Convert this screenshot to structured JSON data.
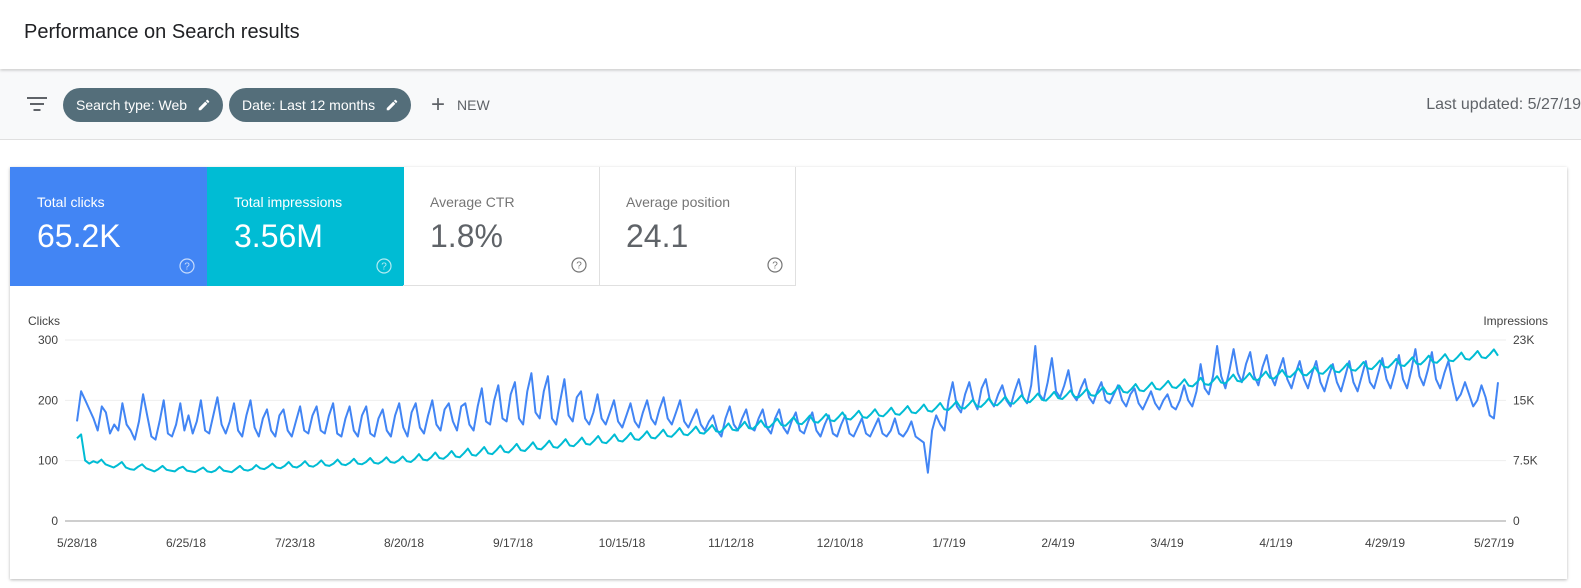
{
  "header": {
    "title": "Performance on Search results"
  },
  "filters": {
    "icon": "filter-list-icon",
    "chips": [
      {
        "label": "Search type: Web",
        "icon": "pencil-icon"
      },
      {
        "label": "Date: Last 12 months",
        "icon": "pencil-icon"
      }
    ],
    "new_label": "NEW",
    "last_updated": "Last updated: 5/27/19"
  },
  "metrics": [
    {
      "label": "Total clicks",
      "value": "65.2K",
      "color": "#4285f4",
      "selected": true
    },
    {
      "label": "Total impressions",
      "value": "3.56M",
      "color": "#00bcd4",
      "selected": true
    },
    {
      "label": "Average CTR",
      "value": "1.8%",
      "selected": false
    },
    {
      "label": "Average position",
      "value": "24.1",
      "selected": false
    }
  ],
  "chart_data": {
    "type": "line",
    "y_left_label": "Clicks",
    "y_right_label": "Impressions",
    "y_left_ticks": [
      "300",
      "200",
      "100",
      "0"
    ],
    "y_right_ticks": [
      "23K",
      "15K",
      "7.5K",
      "0"
    ],
    "ylim_left": [
      0,
      300
    ],
    "ylim_right": [
      0,
      23000
    ],
    "x_ticks": [
      "5/28/18",
      "6/25/18",
      "7/23/18",
      "8/20/18",
      "9/17/18",
      "10/15/18",
      "11/12/18",
      "12/10/18",
      "1/7/19",
      "2/4/19",
      "3/4/19",
      "4/1/19",
      "4/29/19",
      "5/27/19"
    ],
    "grid": true,
    "series": [
      {
        "name": "Clicks",
        "axis": "left",
        "color": "#4285f4",
        "values": [
          165,
          215,
          200,
          185,
          170,
          150,
          190,
          180,
          145,
          160,
          150,
          195,
          160,
          150,
          135,
          165,
          210,
          175,
          140,
          135,
          165,
          200,
          145,
          140,
          160,
          195,
          150,
          175,
          145,
          165,
          200,
          150,
          145,
          175,
          205,
          160,
          145,
          165,
          195,
          150,
          140,
          175,
          200,
          155,
          140,
          170,
          185,
          150,
          140,
          175,
          185,
          150,
          140,
          165,
          190,
          150,
          145,
          175,
          190,
          150,
          145,
          175,
          195,
          145,
          140,
          170,
          190,
          150,
          140,
          175,
          190,
          145,
          140,
          170,
          185,
          150,
          140,
          175,
          195,
          155,
          140,
          180,
          195,
          155,
          145,
          175,
          200,
          160,
          150,
          185,
          195,
          165,
          150,
          190,
          195,
          160,
          150,
          190,
          220,
          165,
          160,
          200,
          225,
          170,
          165,
          210,
          230,
          170,
          160,
          215,
          245,
          180,
          170,
          215,
          240,
          170,
          160,
          200,
          235,
          175,
          165,
          205,
          215,
          170,
          160,
          180,
          210,
          170,
          160,
          180,
          200,
          165,
          155,
          175,
          195,
          165,
          155,
          180,
          200,
          170,
          160,
          185,
          205,
          170,
          160,
          180,
          200,
          165,
          155,
          170,
          185,
          160,
          150,
          165,
          175,
          150,
          140,
          170,
          190,
          160,
          150,
          170,
          185,
          155,
          150,
          170,
          185,
          155,
          145,
          170,
          185,
          155,
          145,
          165,
          180,
          150,
          145,
          165,
          180,
          150,
          140,
          160,
          175,
          145,
          140,
          160,
          175,
          145,
          140,
          155,
          170,
          145,
          140,
          155,
          170,
          145,
          140,
          150,
          170,
          145,
          140,
          150,
          165,
          140,
          135,
          130,
          80,
          150,
          175,
          160,
          150,
          200,
          230,
          190,
          180,
          210,
          230,
          200,
          185,
          220,
          235,
          200,
          190,
          210,
          225,
          200,
          190,
          215,
          235,
          205,
          195,
          225,
          290,
          210,
          200,
          230,
          270,
          215,
          205,
          225,
          250,
          210,
          200,
          220,
          235,
          205,
          195,
          215,
          230,
          200,
          195,
          210,
          225,
          200,
          190,
          210,
          220,
          195,
          185,
          200,
          215,
          195,
          185,
          200,
          210,
          190,
          185,
          200,
          225,
          200,
          190,
          215,
          260,
          220,
          210,
          240,
          290,
          240,
          220,
          250,
          285,
          245,
          230,
          260,
          280,
          240,
          225,
          255,
          275,
          240,
          225,
          250,
          270,
          235,
          220,
          245,
          265,
          235,
          220,
          245,
          265,
          230,
          215,
          240,
          260,
          230,
          215,
          240,
          265,
          230,
          215,
          240,
          265,
          230,
          220,
          245,
          270,
          235,
          220,
          245,
          275,
          235,
          220,
          250,
          285,
          240,
          225,
          250,
          280,
          235,
          220,
          245,
          265,
          230,
          200,
          210,
          230,
          210,
          190,
          200,
          225,
          205,
          175,
          170,
          230
        ]
      },
      {
        "name": "Impressions",
        "axis": "right",
        "color": "#00bcd4",
        "values": [
          10500,
          11000,
          7700,
          7300,
          7600,
          7400,
          7800,
          7200,
          7000,
          6800,
          7100,
          7500,
          6800,
          6600,
          6500,
          6900,
          7200,
          6700,
          6500,
          6300,
          6600,
          7000,
          6500,
          6400,
          6300,
          6700,
          6900,
          6400,
          6300,
          6200,
          6500,
          6800,
          6300,
          6200,
          6400,
          6900,
          6400,
          6300,
          6200,
          6600,
          7000,
          6500,
          6400,
          6600,
          7100,
          6700,
          6600,
          6900,
          7300,
          6800,
          6700,
          7000,
          7500,
          6900,
          6800,
          7100,
          7600,
          7000,
          6900,
          7200,
          7700,
          7100,
          7000,
          7300,
          7800,
          7200,
          7100,
          7400,
          7900,
          7300,
          7200,
          7500,
          8000,
          7400,
          7300,
          7600,
          8100,
          7500,
          7400,
          7700,
          8200,
          7600,
          7500,
          7900,
          8500,
          7800,
          7700,
          8100,
          8700,
          8000,
          7900,
          8300,
          8900,
          8200,
          8100,
          8600,
          9200,
          8400,
          8300,
          8800,
          9400,
          8600,
          8500,
          9000,
          9600,
          8800,
          8700,
          9200,
          9800,
          9000,
          8900,
          9400,
          10000,
          9200,
          9100,
          9600,
          10200,
          9400,
          9300,
          9800,
          10400,
          9600,
          9500,
          10000,
          10600,
          9800,
          9700,
          10200,
          10800,
          10000,
          9900,
          10400,
          11000,
          10200,
          10100,
          10600,
          11200,
          10400,
          10300,
          10800,
          11400,
          10600,
          10500,
          11000,
          11600,
          10800,
          10700,
          11200,
          11800,
          11000,
          10900,
          11400,
          12000,
          11200,
          11100,
          11600,
          12200,
          11400,
          11300,
          11800,
          12400,
          11600,
          11500,
          12000,
          12600,
          11800,
          11700,
          12200,
          12800,
          12000,
          11900,
          12400,
          13000,
          12200,
          12100,
          12600,
          13200,
          12400,
          12300,
          12800,
          13400,
          12600,
          12500,
          13000,
          13600,
          12800,
          12700,
          13200,
          13800,
          13000,
          12900,
          13400,
          14000,
          13200,
          13100,
          13600,
          14200,
          13400,
          13300,
          13800,
          14400,
          13600,
          13500,
          14000,
          14600,
          13800,
          13700,
          14200,
          14800,
          14000,
          13900,
          14400,
          15000,
          14200,
          14100,
          14600,
          15200,
          14400,
          14300,
          14800,
          15400,
          14600,
          14500,
          15000,
          15600,
          14800,
          14700,
          15200,
          15800,
          15000,
          14900,
          15400,
          16000,
          15200,
          15100,
          15600,
          16200,
          15400,
          15300,
          15800,
          16400,
          15600,
          15500,
          16000,
          16600,
          15800,
          15700,
          16200,
          16800,
          16000,
          15900,
          16400,
          17000,
          16200,
          16100,
          16600,
          17200,
          16400,
          16300,
          16800,
          17400,
          16600,
          16500,
          17000,
          17600,
          16800,
          16700,
          17200,
          17800,
          17000,
          16900,
          17400,
          18000,
          17200,
          17100,
          17600,
          18200,
          17400,
          17300,
          17800,
          18400,
          17600,
          17500,
          18000,
          18600,
          17800,
          17700,
          18200,
          18800,
          18000,
          17900,
          18400,
          19000,
          18200,
          18100,
          18600,
          19200,
          18400,
          18300,
          18800,
          19400,
          18600,
          18500,
          19000,
          19600,
          18800,
          18700,
          19200,
          19800,
          19000,
          18900,
          19400,
          20000,
          19200,
          19100,
          19600,
          20200,
          19400,
          19300,
          19800,
          20400,
          19600,
          19500,
          20000,
          20600,
          19800,
          19700,
          20200,
          20800,
          20000,
          19900,
          20400,
          21000,
          20200,
          20100,
          20600,
          21200,
          20400,
          20300,
          20800,
          21400,
          20600,
          20500,
          21000,
          21600,
          20800,
          20700,
          21200,
          21800,
          21000
        ]
      }
    ]
  }
}
